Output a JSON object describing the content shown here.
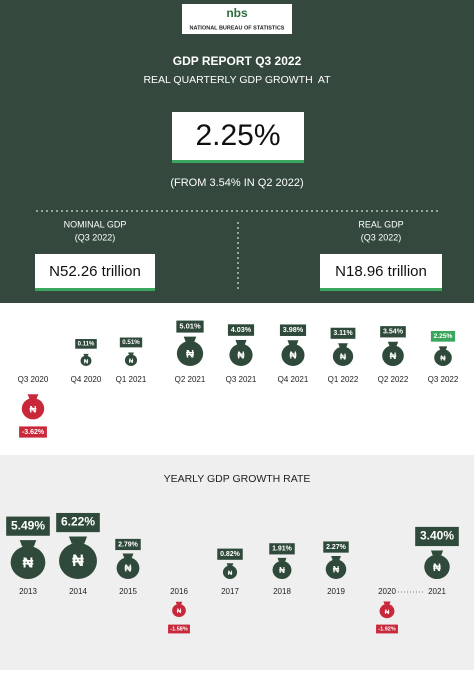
{
  "header": {
    "logo_text": "nbs",
    "organization": "NATIONAL BUREAU OF STATISTICS",
    "title": "GDP REPORT Q3 2022",
    "subtitle": "REAL QUARTERLY GDP GROWTH  AT",
    "headline_value": "2.25%",
    "comparison": "(FROM 3.54% IN Q2 2022)"
  },
  "nominal_gdp": {
    "label": "NOMINAL GDP",
    "period": "(Q3 2022)",
    "value": "N52.26 trillion"
  },
  "real_gdp": {
    "label": "REAL GDP",
    "period": "(Q3 2022)",
    "value": "N18.96 trillion"
  },
  "currency_symbol": "₦",
  "quarterly": [
    {
      "period": "Q3 2020",
      "label": "-3.62%"
    },
    {
      "period": "Q4 2020",
      "label": "0.11%"
    },
    {
      "period": "Q1 2021",
      "label": "0.51%"
    },
    {
      "period": "Q2 2021",
      "label": "5.01%"
    },
    {
      "period": "Q3 2021",
      "label": "4.03%"
    },
    {
      "period": "Q4 2021",
      "label": "3.98%"
    },
    {
      "period": "Q1 2022",
      "label": "3.11%"
    },
    {
      "period": "Q2 2022",
      "label": "3.54%"
    },
    {
      "period": "Q3 2022",
      "label": "2.25%"
    }
  ],
  "yearly": {
    "title": "YEARLY GDP GROWTH RATE",
    "items": [
      {
        "year": "2013",
        "label": "5.49%"
      },
      {
        "year": "2014",
        "label": "6.22%"
      },
      {
        "year": "2015",
        "label": "2.79%"
      },
      {
        "year": "2016",
        "label": "-1.58%"
      },
      {
        "year": "2017",
        "label": "0.82%"
      },
      {
        "year": "2018",
        "label": "1.91%"
      },
      {
        "year": "2019",
        "label": "2.27%"
      },
      {
        "year": "2020",
        "label": "-1.92%"
      },
      {
        "year": "2021",
        "label": "3.40%"
      }
    ]
  }
}
